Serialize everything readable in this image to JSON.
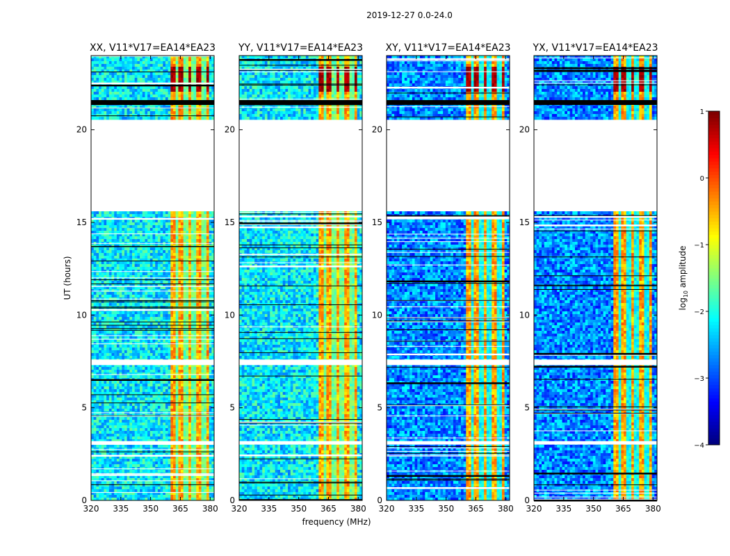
{
  "chart_data": {
    "type": "heatmap",
    "suptitle": "2019-12-27 0.0-24.0",
    "xlabel": "frequency (MHz)",
    "ylabel": "UT (hours)",
    "xlim": [
      320,
      382
    ],
    "ylim": [
      0,
      24
    ],
    "xticks": [
      320,
      335,
      350,
      365,
      380
    ],
    "yticks": [
      0,
      5,
      10,
      15,
      20
    ],
    "colorbar": {
      "label": "log10 amplitude",
      "label_base": "log",
      "label_sub": "10",
      "label_rest": " amplitude",
      "range": [
        -4,
        1
      ],
      "ticks": [
        -4,
        -3,
        -2,
        -1,
        0,
        1
      ],
      "tick_labels": [
        "−4",
        "−3",
        "−2",
        "−1",
        "0",
        "1"
      ],
      "colormap": "jet"
    },
    "panels": [
      {
        "title": "XX, V11*V17=EA14*EA23",
        "polarization": "XX",
        "bright_band_start_mhz": 360
      },
      {
        "title": "YY, V11*V17=EA14*EA23",
        "polarization": "YY",
        "bright_band_start_mhz": 360
      },
      {
        "title": "XY, V11*V17=EA14*EA23",
        "polarization": "XY",
        "bright_band_start_mhz": 360
      },
      {
        "title": "YX, V11*V17=EA14*EA23",
        "polarization": "YX",
        "bright_band_start_mhz": 360
      }
    ],
    "data_gap_hours": [
      20.5,
      15.6
    ],
    "rfi_channels_mhz": [
      360,
      364,
      368,
      372,
      376
    ],
    "background_log_amplitude": -2.2,
    "rfi_log_amplitude": -0.6,
    "max_log_amplitude_hours": [
      22,
      23.4
    ]
  },
  "colors": {
    "axis": "#000000",
    "gap": "#ffffff",
    "flag_black": "#000000"
  }
}
